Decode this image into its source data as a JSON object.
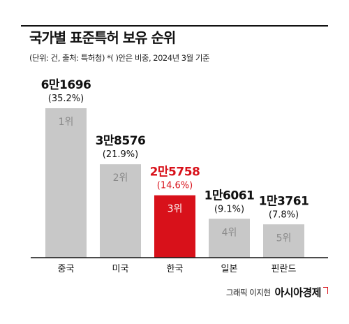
{
  "header": {
    "title": "국가별 표준특허 보유 순위",
    "subtitle": "(단위: 건, 출처: 특허청)  *(  )안은 비중, 2024년 3월 기준"
  },
  "footer": {
    "credit": "그래픽 이지현",
    "brand": "아시아경제"
  },
  "colors": {
    "bar_default": "#c8c8c8",
    "bar_highlight": "#d8111a",
    "rank_default": "#8a8a8a",
    "rank_highlight": "#ffffff",
    "value_default": "#111111",
    "value_highlight": "#d8111a"
  },
  "chart_data": {
    "type": "bar",
    "title": "국가별 표준특허 보유 순위",
    "xlabel": "",
    "ylabel": "",
    "categories": [
      "중국",
      "미국",
      "한국",
      "일본",
      "핀란드"
    ],
    "values": [
      61696,
      38576,
      25758,
      16061,
      13761
    ],
    "value_labels": [
      "6만1696",
      "3만8576",
      "2만5758",
      "1만6061",
      "1만3761"
    ],
    "share_labels": [
      "(35.2%)",
      "(21.9%)",
      "(14.6%)",
      "(9.1%)",
      "(7.8%)"
    ],
    "rank_labels": [
      "1위",
      "2위",
      "3위",
      "4위",
      "5위"
    ],
    "highlight": "한국",
    "ylim": [
      0,
      61696
    ],
    "grid": false,
    "legend": "none"
  }
}
